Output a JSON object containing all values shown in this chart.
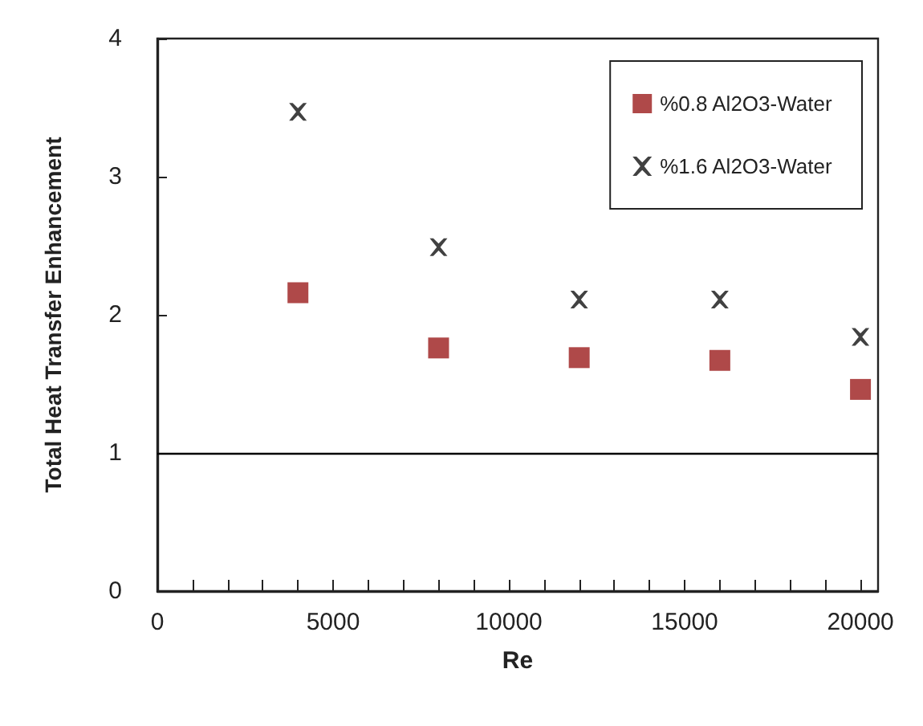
{
  "chart_data": {
    "type": "scatter",
    "xlabel": "Re",
    "ylabel": "Total Heat Transfer Enhancement",
    "xlim": [
      0,
      20500
    ],
    "ylim": [
      0,
      4
    ],
    "xticks": [
      0,
      {
        "value": 1000,
        "label": null
      },
      {
        "value": 2000,
        "label": null
      },
      {
        "value": 3000,
        "label": null
      },
      {
        "value": 4000,
        "label": null
      },
      5000,
      {
        "value": 6000,
        "label": null
      },
      {
        "value": 7000,
        "label": null
      },
      {
        "value": 8000,
        "label": null
      },
      {
        "value": 9000,
        "label": null
      },
      10000,
      {
        "value": 11000,
        "label": null
      },
      {
        "value": 12000,
        "label": null
      },
      {
        "value": 13000,
        "label": null
      },
      {
        "value": 14000,
        "label": null
      },
      15000,
      {
        "value": 16000,
        "label": null
      },
      {
        "value": 17000,
        "label": null
      },
      {
        "value": 18000,
        "label": null
      },
      {
        "value": 19000,
        "label": null
      },
      20000
    ],
    "yticks": [
      0,
      1,
      2,
      3,
      4
    ],
    "grid": false,
    "legend": "top right",
    "x": [
      4000,
      8000,
      12000,
      16000,
      20000
    ],
    "series": [
      {
        "name": "%0.8 Al2O3-Water",
        "color": "#9b1b1b",
        "marker": "square",
        "values": [
          2.16,
          1.76,
          1.69,
          1.67,
          1.46
        ]
      },
      {
        "name": "%1.6 Al2O3-Water",
        "color": "#111111",
        "marker": "cross",
        "values": [
          3.47,
          2.49,
          2.11,
          2.11,
          1.84
        ]
      }
    ],
    "ref_lines": [
      {
        "axis": "y",
        "value": 1,
        "color": "#000000",
        "line_style": "solid"
      }
    ]
  }
}
